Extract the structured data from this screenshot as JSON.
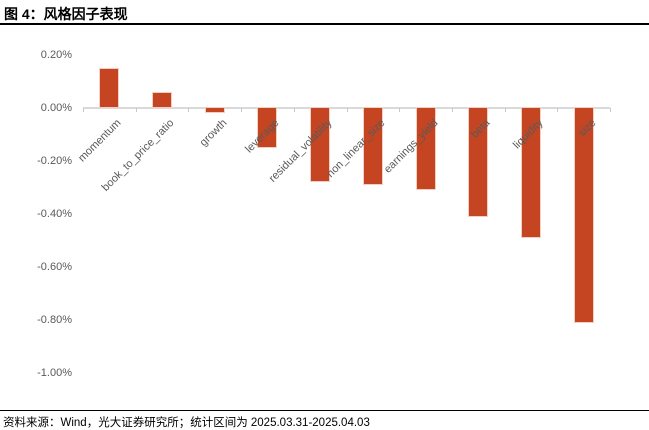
{
  "header": {
    "title": "图 4：风格因子表现"
  },
  "footer": {
    "source": "资料来源：Wind，光大证券研究所；统计区间为 2025.03.31-2025.04.03"
  },
  "chart_data": {
    "type": "bar",
    "title": "风格因子表现",
    "categories": [
      "momentum",
      "book_to_price_ratio",
      "growth",
      "leverage",
      "residual_volatility",
      "non_linear_size",
      "earnings_yield",
      "beta",
      "liquidity",
      "size"
    ],
    "values": [
      0.15,
      0.06,
      -0.02,
      -0.15,
      -0.28,
      -0.29,
      -0.31,
      -0.41,
      -0.49,
      -0.81
    ],
    "unit": "%",
    "xlabel": "",
    "ylabel": "",
    "ylim": [
      -1.0,
      0.2
    ],
    "grid": false,
    "legend_position": "none",
    "y_ticks": [
      {
        "label": "0.20%",
        "value": 0.2
      },
      {
        "label": "0.00%",
        "value": 0.0
      },
      {
        "label": "-0.20%",
        "value": -0.2
      },
      {
        "label": "-0.40%",
        "value": -0.4
      },
      {
        "label": "-0.60%",
        "value": -0.6
      },
      {
        "label": "-0.80%",
        "value": -0.8
      },
      {
        "label": "-1.00%",
        "value": -1.0
      }
    ],
    "colors": {
      "bar_fill": "#C54522",
      "bar_border": "#F2CFC0",
      "axis_line": "#D9D9D9",
      "tick_mark": "#C9C9C9",
      "tick_label": "#595959"
    }
  }
}
